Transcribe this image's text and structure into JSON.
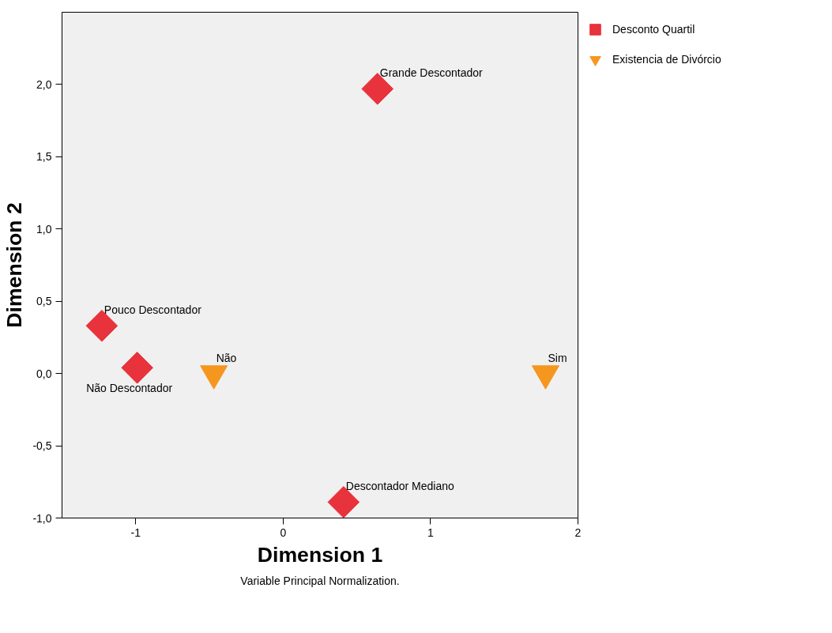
{
  "chart_data": {
    "type": "scatter",
    "xlabel": "Dimension 1",
    "ylabel": "Dimension 2",
    "xlim": [
      -1.5,
      2
    ],
    "ylim": [
      -1.0,
      2.5
    ],
    "xticks": [
      -1,
      0,
      1,
      2
    ],
    "yticks": [
      {
        "value": -1.0,
        "label": "-1,0"
      },
      {
        "value": -0.5,
        "label": "-0,5"
      },
      {
        "value": 0.0,
        "label": "0,0"
      },
      {
        "value": 0.5,
        "label": "0,5"
      },
      {
        "value": 1.0,
        "label": "1,0"
      },
      {
        "value": 1.5,
        "label": "1,5"
      },
      {
        "value": 2.0,
        "label": "2,0"
      }
    ],
    "grid": false,
    "legend": "top right",
    "series": [
      {
        "name": "Desconto Quartil",
        "color": "#e8323c",
        "marker": "diamond",
        "x": [
          0.64,
          -1.23,
          -0.99,
          0.41
        ],
        "values": [
          1.97,
          0.33,
          0.04,
          -0.89
        ]
      },
      {
        "name": "Existencia de Divórcio",
        "color": "#f5961e",
        "marker": "triangle",
        "x": [
          -0.47,
          1.78
        ],
        "values": [
          0.0,
          0.0
        ]
      }
    ],
    "annotations": [
      {
        "text": "Grande Descontador",
        "x": 0.64,
        "y": 1.97
      },
      {
        "text": "Pouco Descontador",
        "x": -1.23,
        "y": 0.33
      },
      {
        "text": "Não Descontador",
        "x": -0.99,
        "y": 0.04
      },
      {
        "text": "Descontador Mediano",
        "x": 0.41,
        "y": -0.89
      },
      {
        "text": "Não",
        "x": -0.47,
        "y": 0.0
      },
      {
        "text": "Sim",
        "x": 1.78,
        "y": 0.0
      },
      "Variable Principal Normalization."
    ]
  }
}
